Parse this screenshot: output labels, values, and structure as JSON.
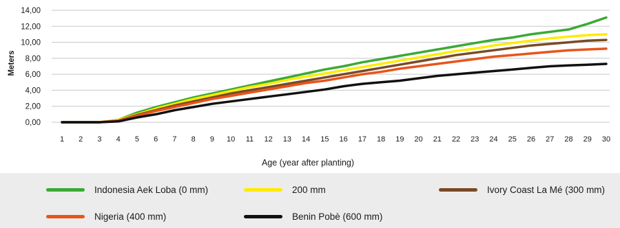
{
  "chart_data": {
    "type": "line",
    "title": "",
    "xlabel": "Age (year after planting)",
    "ylabel": "Meters",
    "x": [
      1,
      2,
      3,
      4,
      5,
      6,
      7,
      8,
      9,
      10,
      11,
      12,
      13,
      14,
      15,
      16,
      17,
      18,
      19,
      20,
      21,
      22,
      23,
      24,
      25,
      26,
      27,
      28,
      29,
      30
    ],
    "y_ticks": [
      "0,00",
      "2,00",
      "4,00",
      "6,00",
      "8,00",
      "10,00",
      "12,00",
      "14,00"
    ],
    "y_tick_values": [
      0,
      2,
      4,
      6,
      8,
      10,
      12,
      14
    ],
    "ylim": [
      0,
      14
    ],
    "grid": "horizontal",
    "legend_position": "bottom",
    "series": [
      {
        "name": "Indonesia Aek Loba (0 mm)",
        "color": "#3aaa35",
        "values": [
          0,
          0,
          0,
          0.3,
          1.2,
          1.9,
          2.5,
          3.1,
          3.6,
          4.1,
          4.6,
          5.1,
          5.6,
          6.1,
          6.6,
          7.0,
          7.5,
          7.9,
          8.3,
          8.7,
          9.1,
          9.5,
          9.9,
          10.3,
          10.6,
          11.0,
          11.3,
          11.6,
          12.3,
          13.1
        ]
      },
      {
        "name": "200 mm",
        "color": "#ffeb00",
        "values": [
          0,
          0,
          0,
          0.3,
          1.0,
          1.7,
          2.3,
          2.9,
          3.4,
          3.9,
          4.4,
          4.8,
          5.3,
          5.7,
          6.1,
          6.5,
          6.9,
          7.3,
          7.7,
          8.1,
          8.5,
          8.9,
          9.2,
          9.6,
          9.9,
          10.2,
          10.5,
          10.7,
          10.9,
          11.0
        ]
      },
      {
        "name": "Ivory Coast La Mé (300 mm)",
        "color": "#7a4a24",
        "values": [
          0,
          0,
          0,
          0.2,
          0.9,
          1.5,
          2.1,
          2.6,
          3.1,
          3.6,
          4.0,
          4.4,
          4.8,
          5.2,
          5.6,
          6.0,
          6.4,
          6.8,
          7.2,
          7.6,
          8.0,
          8.4,
          8.7,
          9.0,
          9.3,
          9.6,
          9.8,
          10.0,
          10.2,
          10.3
        ]
      },
      {
        "name": "Nigeria (400 mm)",
        "color": "#e8541c",
        "values": [
          0,
          0,
          0,
          0.2,
          0.8,
          1.4,
          1.9,
          2.4,
          2.9,
          3.3,
          3.7,
          4.1,
          4.5,
          4.9,
          5.2,
          5.6,
          6.0,
          6.3,
          6.7,
          7.0,
          7.3,
          7.6,
          7.9,
          8.2,
          8.4,
          8.6,
          8.8,
          9.0,
          9.1,
          9.2
        ]
      },
      {
        "name": "Benin Pobè (600 mm)",
        "color": "#111111",
        "values": [
          0,
          0,
          0,
          0.1,
          0.6,
          1.0,
          1.5,
          1.9,
          2.3,
          2.6,
          2.9,
          3.2,
          3.5,
          3.8,
          4.1,
          4.5,
          4.8,
          5.0,
          5.2,
          5.5,
          5.8,
          6.0,
          6.2,
          6.4,
          6.6,
          6.8,
          7.0,
          7.1,
          7.2,
          7.3
        ]
      }
    ]
  }
}
